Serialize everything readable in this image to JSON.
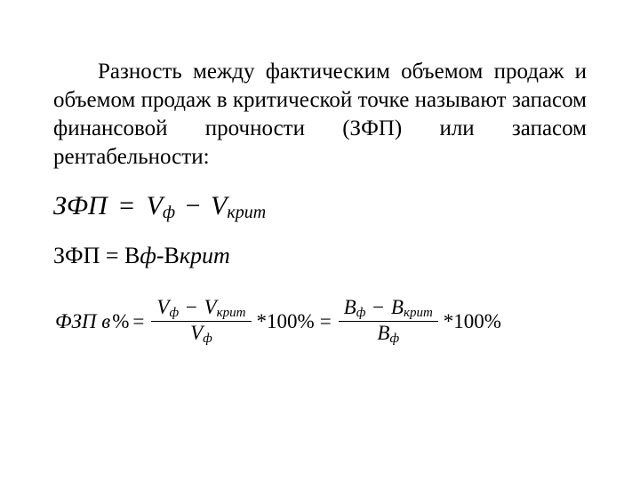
{
  "paragraph": "Разность между фактическим объемом продаж и объемом продаж в критической точке называют запасом финансовой прочности (ЗФП) или запасом рентабельности:",
  "formula1": {
    "lhs": "ЗФП",
    "eq": "=",
    "V1": "V",
    "V1sub": "ф",
    "minus": "−",
    "V2": "V",
    "V2sub": "крит"
  },
  "formula2": {
    "lhs": "ЗФП = ",
    "B1": "В",
    "B1sub": "ф",
    "dash": "-",
    "B2": "В",
    "B2sub": "крит"
  },
  "formula3": {
    "lhs": "ФЗП в",
    "pct": "%",
    "eq": "=",
    "frac1_num_a": "V",
    "frac1_num_a_sub": "ф",
    "frac1_num_minus": "−",
    "frac1_num_b": "V",
    "frac1_num_b_sub": "крит",
    "frac1_den": "V",
    "frac1_den_sub": "ф",
    "times100a": "*100%",
    "eq2": "=",
    "frac2_num_a": "В",
    "frac2_num_a_sub": "ф",
    "frac2_num_minus": "−",
    "frac2_num_b": "В",
    "frac2_num_b_sub": "крит",
    "frac2_den": "В",
    "frac2_den_sub": "ф",
    "times100b": "*100%"
  }
}
